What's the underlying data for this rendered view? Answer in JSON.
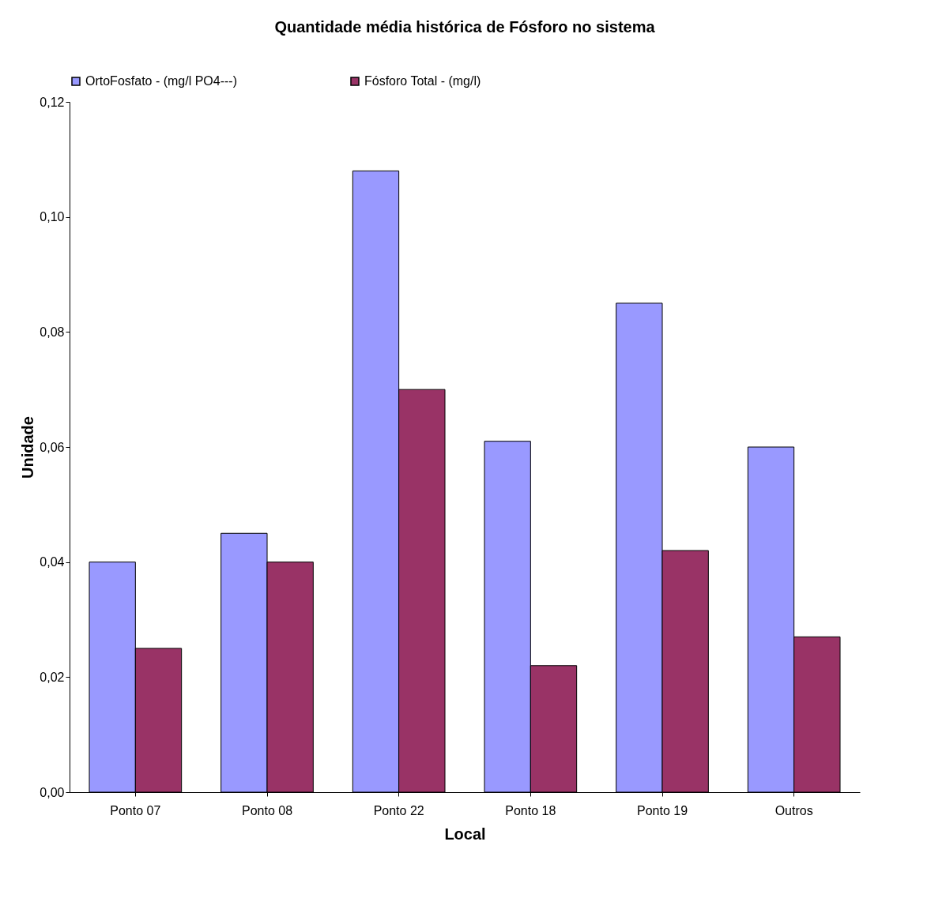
{
  "chart_data": {
    "type": "bar",
    "title": "Quantidade média histórica de Fósforo no sistema",
    "xlabel": "Local",
    "ylabel": "Unidade",
    "categories": [
      "Ponto 07",
      "Ponto 08",
      "Ponto 22",
      "Ponto 18",
      "Ponto 19",
      "Outros"
    ],
    "series": [
      {
        "name": "OrtoFosfato - (mg/l PO4---)",
        "color": "#9999ff",
        "values": [
          0.04,
          0.045,
          0.108,
          0.061,
          0.085,
          0.06
        ]
      },
      {
        "name": "Fósforo Total - (mg/l)",
        "color": "#993366",
        "values": [
          0.025,
          0.04,
          0.07,
          0.022,
          0.042,
          0.027
        ]
      }
    ],
    "ylim": [
      0,
      0.12
    ],
    "yticks": [
      {
        "value": 0,
        "label": "0,00"
      },
      {
        "value": 0.02,
        "label": "0,02"
      },
      {
        "value": 0.04,
        "label": "0,04"
      },
      {
        "value": 0.06,
        "label": "0,06"
      },
      {
        "value": 0.08,
        "label": "0,08"
      },
      {
        "value": 0.1,
        "label": "0,10"
      },
      {
        "value": 0.12,
        "label": "0,12"
      }
    ],
    "grid": false,
    "legend": "top"
  }
}
